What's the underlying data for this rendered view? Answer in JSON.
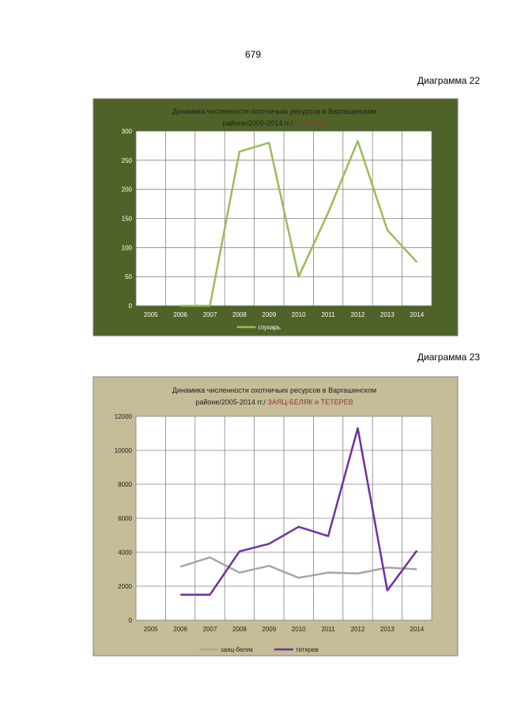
{
  "page_number": "679",
  "captions": [
    "Диаграмма 22",
    "Диаграмма 23"
  ],
  "chart_data": [
    {
      "type": "line",
      "title_line1": "Динамика численности охотничьих ресурсов в Варгашинском",
      "title_line2": "районе/2005-2014 гг./",
      "title_highlight": "ГЛУХАРЬ",
      "categories": [
        "2005",
        "2006",
        "2007",
        "2008",
        "2009",
        "2010",
        "2011",
        "2012",
        "2013",
        "2014"
      ],
      "yticks": [
        "0",
        "50",
        "100",
        "150",
        "200",
        "250",
        "300"
      ],
      "ylim": [
        0,
        300
      ],
      "grid": true,
      "legend_position": "bottom",
      "background": "#4f6228",
      "series": [
        {
          "name": "глухарь",
          "color": "#9bbb59",
          "values": [
            null,
            0,
            0,
            265,
            280,
            50,
            160,
            283,
            130,
            75
          ]
        }
      ]
    },
    {
      "type": "line",
      "title_line1": "Динамика численности  охотничьих ресурсов  в Варгашинском",
      "title_line2": "районе/2005-2014  гг./",
      "title_highlight": "ЗАЯЦ-БЕЛЯК и ТЕТЕРЕВ",
      "categories": [
        "2005",
        "2006",
        "2007",
        "2008",
        "2009",
        "2010",
        "2011",
        "2012",
        "2013",
        "2014"
      ],
      "yticks": [
        "0",
        "2000",
        "4000",
        "6000",
        "8000",
        "10000",
        "12000"
      ],
      "ylim": [
        0,
        12000
      ],
      "grid": true,
      "legend_position": "bottom",
      "background": "#c4bd97",
      "series": [
        {
          "name": "заяц-беляк",
          "color": "#a6a6a6",
          "values": [
            null,
            3150,
            3700,
            2800,
            3200,
            2500,
            2800,
            2750,
            3100,
            3000
          ]
        },
        {
          "name": "тетерев",
          "color": "#7030a0",
          "values": [
            null,
            1500,
            1500,
            4050,
            4500,
            5500,
            4950,
            11300,
            1750,
            4100
          ]
        }
      ]
    }
  ]
}
